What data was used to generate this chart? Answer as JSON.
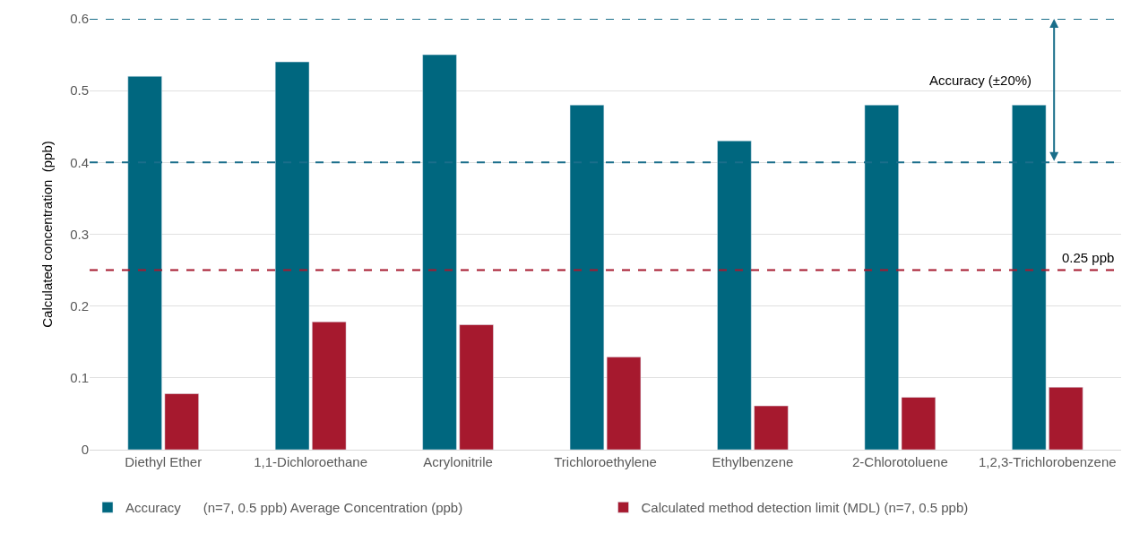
{
  "chart_data": {
    "type": "bar",
    "ylabel": "Calculated concentration  (ppb)",
    "categories": [
      "Diethyl Ether",
      "1,1-Dichloroethane",
      "Acrylonitrile",
      "Trichloroethylene",
      "Ethylbenzene",
      "2-Chlorotoluene",
      "1,2,3-Trichlorobenzene"
    ],
    "series": [
      {
        "name": "Accuracy      (n=7, 0.5 ppb) Average Concentration (ppb)",
        "color": "#00677f",
        "values": [
          0.52,
          0.54,
          0.55,
          0.48,
          0.43,
          0.48,
          0.48
        ]
      },
      {
        "name": "Calculated method detection limit (MDL) (n=7, 0.5 ppb)",
        "color": "#a6192e",
        "values": [
          0.078,
          0.178,
          0.174,
          0.129,
          0.061,
          0.073,
          0.087
        ]
      }
    ],
    "ylim": [
      0,
      0.6
    ],
    "yticks": [
      0,
      0.1,
      0.2,
      0.3,
      0.4,
      0.5,
      0.6
    ],
    "grid": "y",
    "legend": "bottom",
    "ref_lines": [
      {
        "axis": "y",
        "value": 0.6,
        "color": "#1a6e8a",
        "line_style": "dashed"
      },
      {
        "axis": "y",
        "value": 0.4,
        "color": "#1a6e8a",
        "line_style": "dashed"
      },
      {
        "axis": "y",
        "value": 0.25,
        "label": "0.25 ppb",
        "color": "#a6192e",
        "line_style": "dashed"
      }
    ],
    "annotations": [
      "Accuracy (±20%)"
    ]
  }
}
